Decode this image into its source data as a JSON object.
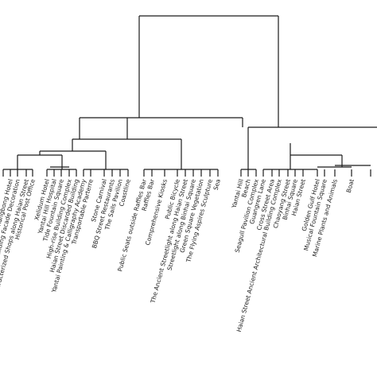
{
  "dendrogram": {
    "leaf_labels": [
      "",
      "Changbong Hotel",
      "Haian Street Ancient Building Facade Decoration",
      "Characterized Shops along Haian Street",
      "Historical Post Office",
      "Xelidum Hotel",
      "Yantai Hill Hospital",
      "Tide Fountain Square",
      "High-rise Building Complex",
      "Haian Street Discarded Building",
      "Yantai Painting & Calligraphy Academy",
      "Transportable Parterre",
      "Stone Carnival",
      "BBQ Street Restaurants",
      "The Sails Pavilion",
      "Coastline",
      "Public Seats outside Raffles Bar",
      "Raffles Bar",
      "Comprehensive Kiosks",
      "Public Bicycle",
      "The Ancient Streetlight along Haian Street",
      "Streetlight along Binhai Square",
      "Green Square Vegetation",
      "The Flying Aspires Sculpture",
      "Sea",
      "Yantai Hill",
      "Beach",
      "Seagull Pavilion Complex",
      "Guangren Lane",
      "Cross Street Area",
      "Haian Street Ancient Architectural Building Complex",
      "Chaoyang Street",
      "Binhai Square",
      "Haian Street",
      "Golden Gulf Hotel",
      "Musical Fountain Square",
      "Marine Plants and Animals",
      "Boat",
      ""
    ]
  }
}
